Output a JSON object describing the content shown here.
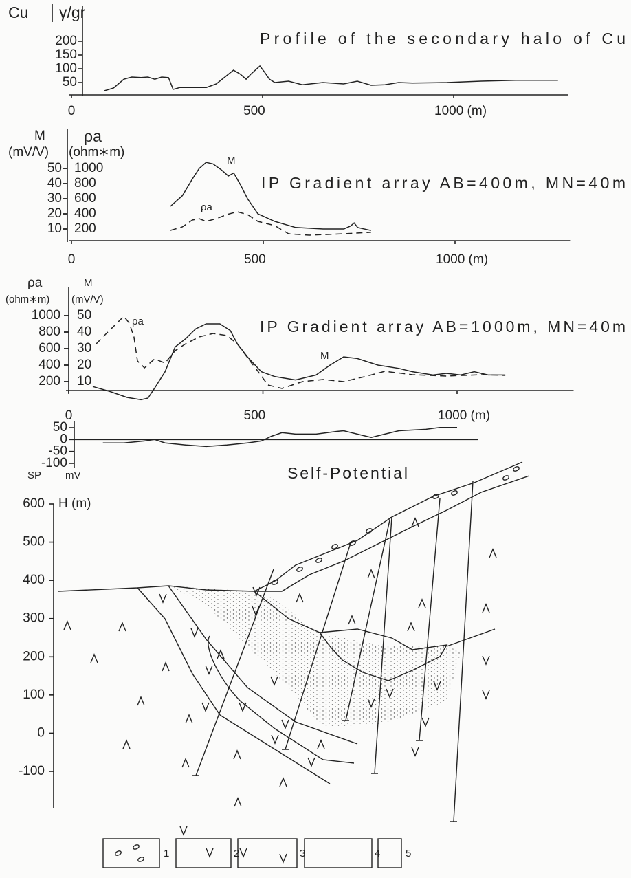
{
  "chart_data": [
    {
      "type": "line",
      "title": "Profile of the secondary halo of Cu",
      "ylabel": [
        "Cu",
        "γ/gr"
      ],
      "xlim": [
        0,
        1300
      ],
      "xticks": [
        0,
        500,
        {
          "value": 1000,
          "label": "1000 (m)"
        }
      ],
      "ylim": [
        0,
        250
      ],
      "yticks": [
        50,
        100,
        150,
        200
      ],
      "series": [
        {
          "color": "#222",
          "style": "solid",
          "x": [
            86,
            110,
            137,
            158,
            182,
            200,
            218,
            236,
            254,
            266,
            284,
            317,
            353,
            379,
            406,
            424,
            442,
            457,
            469,
            493,
            505,
            518,
            532,
            568,
            604,
            658,
            712,
            748,
            784,
            820,
            856,
            892,
            982,
            1072,
            1162,
            1273
          ],
          "values": [
            20,
            30,
            62,
            70,
            68,
            70,
            62,
            70,
            68,
            25,
            32,
            32,
            32,
            45,
            75,
            95,
            80,
            62,
            80,
            110,
            88,
            62,
            50,
            55,
            42,
            50,
            45,
            55,
            40,
            42,
            50,
            48,
            50,
            55,
            58,
            58
          ]
        }
      ]
    },
    {
      "type": "line",
      "title": "IP Gradient array AB=400m, MN=40m",
      "ylabel": [
        "M",
        "(mV/V)"
      ],
      "y2label": [
        "ρa",
        "(ohm∗m)"
      ],
      "xlim": [
        0,
        1300
      ],
      "xticks": [
        0,
        500,
        {
          "value": 1000,
          "label": "1000 (m)"
        }
      ],
      "ylim": [
        0,
        60
      ],
      "yticks": [
        10,
        20,
        30,
        40,
        50
      ],
      "y2lim": [
        0,
        1200
      ],
      "y2ticks": [
        200,
        400,
        600,
        800,
        1000
      ],
      "series": [
        {
          "name": "M",
          "color": "#222",
          "style": "solid",
          "x": [
            258,
            289,
            315,
            333,
            351,
            369,
            391,
            409,
            423,
            441,
            459,
            486,
            530,
            584,
            656,
            710,
            728,
            737,
            746,
            781
          ],
          "values": [
            25,
            32,
            43,
            50,
            54,
            53,
            49,
            45,
            47,
            39,
            30,
            20,
            15,
            11,
            10,
            10,
            12,
            14,
            11,
            9
          ]
        },
        {
          "name": "ρa",
          "color": "#222",
          "style": "dashed",
          "axis": "y2",
          "x": [
            258,
            289,
            315,
            333,
            351,
            378,
            405,
            432,
            459,
            486,
            530,
            566,
            620,
            710,
            781
          ],
          "values": [
            182,
            227,
            318,
            336,
            300,
            336,
            391,
            427,
            391,
            300,
            245,
            136,
            118,
            136,
            155
          ]
        }
      ]
    },
    {
      "type": "line",
      "title": "IP Gradient array AB=1000m, MN=40m",
      "ylabel": [
        "M",
        "(mV/V)"
      ],
      "y2label": [
        "ρa",
        "(ohm∗m)"
      ],
      "xlim": [
        0,
        1300
      ],
      "xticks": [
        0,
        500,
        {
          "value": 1000,
          "label": "1000 (m)"
        }
      ],
      "ylim": [
        0,
        60
      ],
      "yticks": [
        10,
        20,
        30,
        40,
        50
      ],
      "y2lim": [
        0,
        1200
      ],
      "y2ticks": [
        200,
        400,
        600,
        800,
        1000
      ],
      "series": [
        {
          "name": "M",
          "color": "#222",
          "style": "solid",
          "x": [
            62,
            106,
            150,
            186,
            204,
            221,
            248,
            274,
            301,
            327,
            354,
            389,
            416,
            434,
            460,
            496,
            531,
            584,
            637,
            673,
            708,
            743,
            796,
            850,
            885,
            938,
            973,
            1009,
            1044,
            1080,
            1124
          ],
          "values": [
            7,
            4,
            0.4,
            -1,
            0,
            6,
            16,
            31,
            36,
            42,
            45,
            45,
            41,
            33,
            25,
            16,
            13,
            11,
            14,
            20,
            25,
            24,
            20,
            18,
            16,
            14,
            15,
            14,
            16,
            14,
            14
          ]
        },
        {
          "name": "ρa",
          "color": "#222",
          "style": "dashed",
          "axis": "y2",
          "x": [
            71,
            97,
            124,
            142,
            156,
            168,
            177,
            195,
            221,
            248,
            274,
            301,
            336,
            372,
            407,
            434,
            460,
            487,
            513,
            549,
            602,
            655,
            708,
            761,
            814,
            885,
            973,
            1062,
            1124
          ],
          "values": [
            658,
            783,
            908,
            992,
            908,
            742,
            450,
            367,
            475,
            425,
            575,
            658,
            742,
            783,
            758,
            658,
            492,
            325,
            158,
            117,
            200,
            225,
            200,
            258,
            325,
            283,
            267,
            283,
            275
          ]
        }
      ]
    },
    {
      "type": "line",
      "title": "Self-Potential",
      "ylabel": [
        "SP",
        "mV"
      ],
      "xlim": [
        0,
        1300
      ],
      "ylim": [
        -100,
        50
      ],
      "yticks": [
        50,
        0,
        -50,
        -100
      ],
      "series": [
        {
          "color": "#222",
          "style": "solid",
          "x": [
            88,
            142,
            195,
            221,
            248,
            301,
            354,
            407,
            460,
            496,
            522,
            549,
            584,
            637,
            690,
            708,
            743,
            779,
            814,
            850,
            920,
            956,
            1000
          ],
          "values": [
            -14,
            -14,
            -6,
            0,
            -14,
            -23,
            -29,
            -23,
            -14,
            -6,
            14,
            29,
            23,
            23,
            34,
            37,
            23,
            9,
            23,
            37,
            43,
            51,
            51
          ]
        }
      ]
    },
    {
      "type": "section",
      "ylabel": [
        "H (m)"
      ],
      "ylim": [
        -100,
        600
      ],
      "yticks": [
        600,
        500,
        400,
        300,
        200,
        100,
        0,
        -100
      ],
      "legend": [
        "1",
        "2",
        "3",
        "4",
        "5"
      ]
    }
  ]
}
